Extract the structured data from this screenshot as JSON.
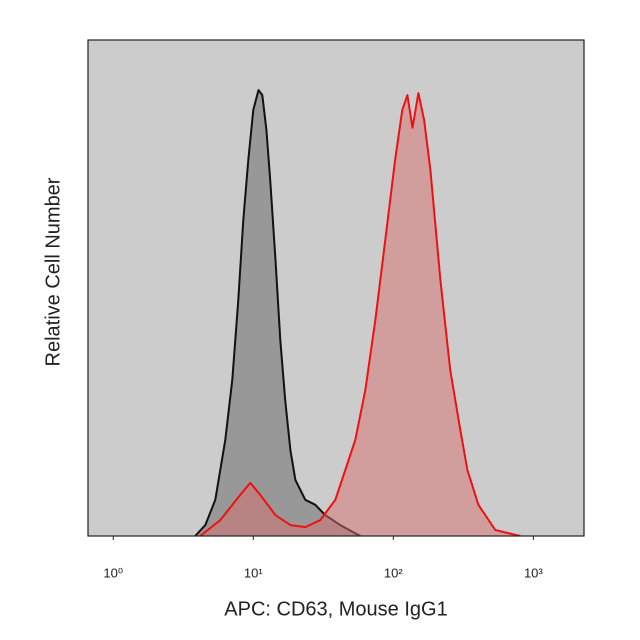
{
  "chart_data": {
    "type": "area",
    "xlabel": "APC: CD63, Mouse IgG1",
    "ylabel": "Relative Cell Number",
    "xscale": "log",
    "xlim": [
      0.66,
      2300
    ],
    "ylim": [
      0,
      100
    ],
    "xticks": [
      {
        "value": 1,
        "label": "10⁰"
      },
      {
        "value": 10,
        "label": "10¹"
      },
      {
        "value": 100,
        "label": "10²"
      },
      {
        "value": 1000,
        "label": "10³"
      }
    ],
    "background": "#cccccc",
    "series": [
      {
        "color": "#111111",
        "fill": "rgba(110,110,110,0.55)",
        "x": [
          3.85,
          4.54,
          5.35,
          6.31,
          7.08,
          7.81,
          8.49,
          9.21,
          10,
          10.9,
          11.6,
          12.4,
          13.2,
          14.4,
          15.6,
          16.9,
          18.4,
          20,
          23.5,
          27.7,
          32.7,
          41.8,
          58.1
        ],
        "values": [
          0,
          2.2,
          7.3,
          19.4,
          31.5,
          47.6,
          63.7,
          75.8,
          85.9,
          89.9,
          88.9,
          81.9,
          71.8,
          55.6,
          39.5,
          27.4,
          17.3,
          11.3,
          7.3,
          6.3,
          4.2,
          2.2,
          0
        ]
      },
      {
        "color": "#ee1111",
        "fill": "rgba(215,110,110,0.5)",
        "x": [
          4.18,
          5.81,
          8.07,
          9.52,
          11.2,
          14.4,
          18.4,
          23.5,
          30.1,
          38.5,
          45.4,
          53.5,
          63.1,
          74.3,
          87.7,
          103,
          116,
          126,
          137,
          151,
          166,
          184,
          217,
          255,
          301,
          338,
          405,
          535,
          807
        ],
        "values": [
          0,
          3.2,
          8.3,
          10.7,
          8.3,
          4.2,
          2.2,
          1.8,
          3.2,
          7.3,
          13.3,
          19.4,
          29.4,
          43.5,
          59.7,
          75.8,
          85.9,
          88.9,
          82.3,
          89.3,
          83.9,
          73.8,
          51.6,
          33.5,
          21.4,
          13.3,
          6.3,
          1.2,
          0
        ]
      }
    ]
  }
}
